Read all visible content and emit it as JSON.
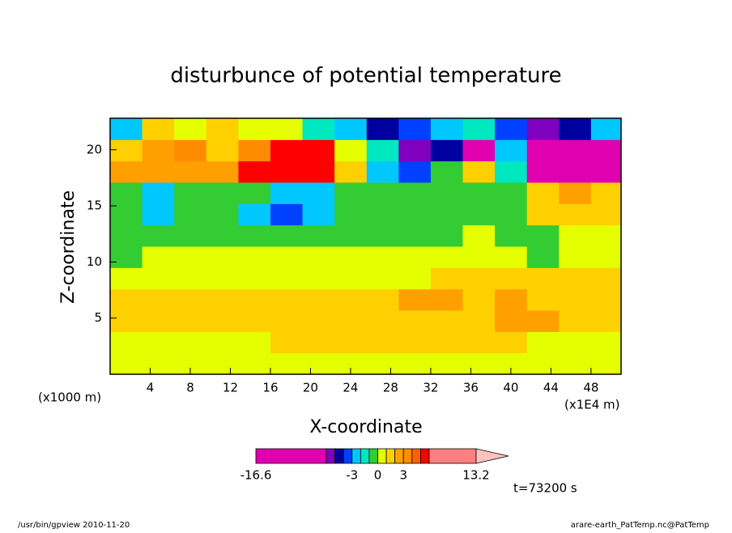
{
  "chart_data": {
    "type": "heatmap",
    "title": "disturbunce of potential temperature",
    "xlabel": "X-coordinate",
    "ylabel": "Z-coordinate",
    "xunit_left": "(x1000 m)",
    "xunit_right": "(x1E4 m)",
    "time_label": "t=73200 s",
    "footer_left": "/usr/bin/gpview   2010-11-20",
    "footer_right": "arare-earth_PatTemp.nc@PatTemp",
    "xlim": [
      0,
      51
    ],
    "ylim": [
      0,
      22.8
    ],
    "xticks": [
      4,
      8,
      12,
      16,
      20,
      24,
      28,
      32,
      36,
      40,
      44,
      48
    ],
    "yticks": [
      5,
      10,
      15,
      20
    ],
    "x": [
      1.6,
      4.8,
      8.0,
      11.2,
      14.4,
      17.6,
      20.8,
      24.0,
      27.2,
      30.4,
      33.6,
      36.8,
      40.0,
      43.2,
      46.4,
      49.6
    ],
    "y": [
      0.95,
      2.85,
      4.75,
      6.65,
      8.55,
      10.45,
      12.35,
      14.25,
      16.15,
      18.05,
      19.95,
      21.85
    ],
    "z": [
      [
        0.5,
        0.5,
        0.5,
        0.5,
        0.5,
        0.5,
        0.5,
        0.5,
        0.5,
        0.5,
        0.5,
        0.5,
        0.5,
        0.5,
        0.5,
        0.5
      ],
      [
        0.8,
        0.8,
        0.8,
        0.8,
        0.9,
        1.2,
        1.2,
        1.2,
        1.2,
        1.2,
        1.2,
        1.2,
        1.2,
        0.8,
        0.8,
        0.8
      ],
      [
        1.5,
        1.5,
        1.5,
        1.5,
        1.5,
        1.5,
        1.5,
        1.5,
        1.5,
        1.5,
        1.5,
        1.5,
        2.2,
        2.2,
        1.5,
        1.5
      ],
      [
        1.5,
        1.5,
        1.5,
        1.5,
        1.5,
        1.5,
        1.5,
        1.5,
        1.5,
        2.3,
        2.3,
        1.5,
        2.2,
        1.5,
        1.5,
        1.5
      ],
      [
        0.7,
        0.7,
        0.7,
        0.7,
        0.7,
        0.7,
        0.7,
        0.7,
        0.7,
        0.7,
        1.2,
        1.2,
        1.2,
        1.5,
        1.2,
        1.2
      ],
      [
        -0.3,
        0.4,
        0.4,
        0.4,
        0.4,
        0.4,
        0.4,
        0.4,
        0.4,
        0.4,
        0.4,
        0.4,
        0.4,
        -0.3,
        0.4,
        0.4
      ],
      [
        -0.5,
        -0.5,
        -0.5,
        -0.5,
        -0.5,
        -0.5,
        -0.5,
        -0.5,
        -0.5,
        -0.5,
        -0.5,
        0.3,
        -0.3,
        -0.3,
        0.3,
        0.3
      ],
      [
        -0.5,
        -2.5,
        -0.5,
        -0.5,
        -2.5,
        -3.5,
        -2.5,
        -0.5,
        -0.5,
        -0.5,
        -0.5,
        -0.5,
        -0.3,
        2,
        2,
        1.5
      ],
      [
        -0.6,
        -2.2,
        -0.6,
        -0.6,
        -0.6,
        -2.5,
        -2.5,
        -0.6,
        -0.6,
        -0.6,
        -0.6,
        -0.6,
        -0.6,
        1.5,
        2.5,
        1.5
      ],
      [
        2.5,
        2.5,
        2.5,
        2.5,
        5.5,
        5.5,
        5.5,
        1.2,
        -2.5,
        -3.5,
        -0.5,
        2,
        -1,
        -6,
        -6,
        -6
      ],
      [
        1.5,
        3,
        4,
        1.5,
        4,
        5.5,
        5.5,
        1,
        -1.5,
        -5.5,
        -4,
        -6.5,
        -2,
        -6,
        -8,
        -6
      ],
      [
        -2,
        1.5,
        1,
        2,
        1,
        0.5,
        -1,
        -2.5,
        -4,
        -3,
        -2,
        -1,
        -3,
        -5,
        -4,
        -2
      ]
    ],
    "colorbar": {
      "levels": [
        -16.6,
        -6,
        -5,
        -4,
        -3,
        -2,
        -1,
        0,
        1,
        2,
        3,
        4,
        5,
        6,
        13.2
      ],
      "colors": [
        "#e000b0",
        "#8000c0",
        "#0000a0",
        "#0040ff",
        "#00c8ff",
        "#00e8c0",
        "#33cc33",
        "#e6ff00",
        "#ffd000",
        "#ffa000",
        "#ff8c00",
        "#ff6000",
        "#ff0000",
        "#ff8080"
      ],
      "extend_color": "#ffc0c0",
      "ticks": [
        -16.6,
        -3,
        0,
        3,
        13.2
      ]
    }
  }
}
